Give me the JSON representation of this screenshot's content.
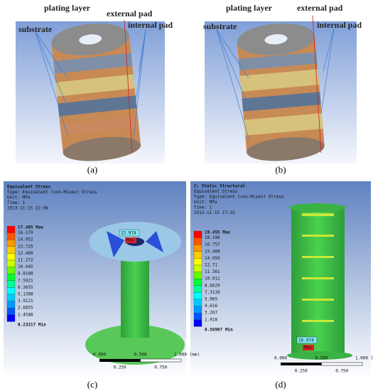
{
  "panels": [
    {
      "caption": "(a)",
      "labels": [
        "plating layer",
        "external pad",
        "substrate",
        "internal pad"
      ]
    },
    {
      "caption": "(b)",
      "labels": [
        "plating layer",
        "external pad",
        "substrate",
        "internal pad"
      ]
    },
    {
      "caption": "(c)",
      "header": [
        "Equivalent Stress",
        "Type: Equivalent (von-Mises) Stress",
        "Unit: MPa",
        "Time: 1",
        "2013-11-15 22:08"
      ],
      "legend": [
        "17.405 Max",
        "16.179",
        "14.952",
        "13.725",
        "12.499",
        "11.272",
        "10.045",
        "8.8188",
        "7.5921",
        "6.3655",
        "5.1388",
        "3.9121",
        "2.6855",
        "1.4588",
        "0.23217 Min"
      ],
      "probes": [
        "15.974",
        "Max"
      ],
      "scale": [
        "0.000",
        "0.500",
        "1.000 (mm)",
        "0.250",
        "0.750"
      ]
    },
    {
      "caption": "(d)",
      "header": [
        "C: Static Structural",
        "Equivalent Stress",
        "Type: Equivalent (von-Mises) Stress",
        "Unit: MPa",
        "Time: 1",
        "2013-11-15 17:32"
      ],
      "legend": [
        "19.455 Max",
        "18.106",
        "16.757",
        "15.408",
        "14.059",
        "12.71",
        "11.361",
        "10.012",
        "8.6629",
        "7.3139",
        "5.965",
        "4.616",
        "3.267",
        "1.918",
        "0.56907 Min"
      ],
      "probes": [
        "16.974",
        "Max"
      ],
      "scale": [
        "0.000",
        "0.500",
        "1.000 (mm)",
        "0.250",
        "0.750"
      ]
    }
  ]
}
